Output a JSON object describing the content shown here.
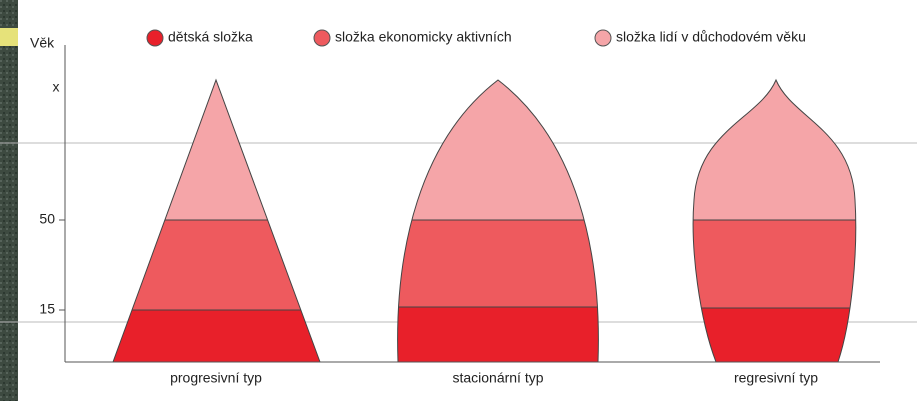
{
  "axis": {
    "label": "Věk",
    "ticks": [
      "x",
      "50",
      "15"
    ]
  },
  "legend": [
    "dětská složka",
    "složka ekonomicky aktivních",
    "složka lidí v důchodovém věku"
  ],
  "types": [
    "progresivní typ",
    "stacionární typ",
    "regresivní typ"
  ]
}
